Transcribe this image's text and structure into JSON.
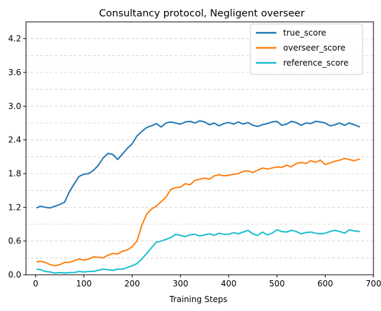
{
  "chart_data": {
    "type": "line",
    "title": "Consultancy protocol, Negligent overseer",
    "xlabel": "Training Steps",
    "ylabel": "",
    "xlim": [
      -20,
      700
    ],
    "ylim": [
      0.0,
      4.5
    ],
    "xticks": [
      0,
      100,
      200,
      300,
      400,
      500,
      600,
      700
    ],
    "yticks": [
      0.0,
      0.6,
      1.2,
      1.8,
      2.4,
      3.0,
      3.6,
      4.2
    ],
    "xtick_labels": [
      "0",
      "100",
      "200",
      "300",
      "400",
      "500",
      "600",
      "700"
    ],
    "ytick_labels": [
      "0.0",
      "0.6",
      "1.2",
      "1.8",
      "2.4",
      "3.0",
      "3.6",
      "4.2"
    ],
    "grid": "horizontal dashed, major and minor",
    "legend_position": "top-right",
    "series": [
      {
        "name": "true_score",
        "color": "#1f77b4",
        "x": [
          2,
          10,
          20,
          30,
          40,
          50,
          60,
          70,
          80,
          90,
          100,
          110,
          120,
          130,
          140,
          150,
          160,
          170,
          180,
          190,
          200,
          210,
          220,
          230,
          240,
          250,
          260,
          270,
          280,
          290,
          300,
          310,
          320,
          330,
          340,
          350,
          360,
          370,
          380,
          390,
          400,
          410,
          420,
          430,
          440,
          450,
          460,
          470,
          480,
          490,
          500,
          510,
          520,
          530,
          540,
          550,
          560,
          570,
          580,
          590,
          600,
          610,
          620,
          630,
          640,
          650,
          660,
          672
        ],
        "values": [
          1.19,
          1.22,
          1.2,
          1.19,
          1.22,
          1.25,
          1.29,
          1.48,
          1.62,
          1.75,
          1.79,
          1.8,
          1.86,
          1.95,
          2.08,
          2.16,
          2.14,
          2.05,
          2.15,
          2.25,
          2.33,
          2.47,
          2.55,
          2.62,
          2.65,
          2.69,
          2.63,
          2.7,
          2.72,
          2.7,
          2.68,
          2.72,
          2.73,
          2.7,
          2.74,
          2.72,
          2.67,
          2.7,
          2.65,
          2.69,
          2.71,
          2.68,
          2.72,
          2.68,
          2.71,
          2.66,
          2.64,
          2.67,
          2.69,
          2.72,
          2.73,
          2.66,
          2.68,
          2.73,
          2.71,
          2.66,
          2.7,
          2.69,
          2.73,
          2.72,
          2.7,
          2.65,
          2.67,
          2.7,
          2.66,
          2.7,
          2.67,
          2.63
        ]
      },
      {
        "name": "overseer_score",
        "color": "#ff7f0e",
        "x": [
          2,
          10,
          20,
          30,
          40,
          50,
          60,
          70,
          80,
          90,
          100,
          110,
          120,
          130,
          140,
          150,
          160,
          170,
          180,
          190,
          200,
          210,
          220,
          230,
          240,
          250,
          260,
          270,
          280,
          290,
          300,
          310,
          320,
          330,
          340,
          350,
          360,
          370,
          380,
          390,
          400,
          410,
          420,
          430,
          440,
          450,
          460,
          470,
          480,
          490,
          500,
          510,
          520,
          530,
          540,
          550,
          560,
          570,
          580,
          590,
          600,
          610,
          620,
          630,
          640,
          650,
          660,
          672
        ],
        "values": [
          0.23,
          0.24,
          0.22,
          0.18,
          0.16,
          0.18,
          0.22,
          0.22,
          0.25,
          0.28,
          0.26,
          0.28,
          0.32,
          0.31,
          0.3,
          0.35,
          0.38,
          0.37,
          0.42,
          0.44,
          0.5,
          0.6,
          0.88,
          1.08,
          1.17,
          1.22,
          1.3,
          1.38,
          1.52,
          1.55,
          1.56,
          1.62,
          1.6,
          1.68,
          1.7,
          1.72,
          1.7,
          1.76,
          1.78,
          1.76,
          1.77,
          1.79,
          1.8,
          1.84,
          1.85,
          1.82,
          1.86,
          1.9,
          1.88,
          1.9,
          1.92,
          1.91,
          1.95,
          1.92,
          1.98,
          2.0,
          1.98,
          2.03,
          2.0,
          2.04,
          1.96,
          1.99,
          2.02,
          2.04,
          2.07,
          2.05,
          2.03,
          2.06
        ]
      },
      {
        "name": "reference_score",
        "color": "#17becf",
        "x": [
          2,
          10,
          20,
          30,
          40,
          50,
          60,
          70,
          80,
          90,
          100,
          110,
          120,
          130,
          140,
          150,
          160,
          170,
          180,
          190,
          200,
          210,
          220,
          230,
          240,
          250,
          260,
          270,
          280,
          290,
          300,
          310,
          320,
          330,
          340,
          350,
          360,
          370,
          380,
          390,
          400,
          410,
          420,
          430,
          440,
          450,
          460,
          470,
          480,
          490,
          500,
          510,
          520,
          530,
          540,
          550,
          560,
          570,
          580,
          590,
          600,
          610,
          620,
          630,
          640,
          650,
          660,
          672
        ],
        "values": [
          0.1,
          0.09,
          0.06,
          0.05,
          0.03,
          0.04,
          0.03,
          0.04,
          0.04,
          0.06,
          0.05,
          0.06,
          0.06,
          0.08,
          0.1,
          0.09,
          0.08,
          0.1,
          0.1,
          0.13,
          0.16,
          0.2,
          0.28,
          0.38,
          0.48,
          0.58,
          0.6,
          0.63,
          0.66,
          0.72,
          0.7,
          0.68,
          0.71,
          0.72,
          0.69,
          0.71,
          0.73,
          0.7,
          0.74,
          0.72,
          0.72,
          0.75,
          0.73,
          0.76,
          0.79,
          0.73,
          0.7,
          0.76,
          0.71,
          0.74,
          0.8,
          0.77,
          0.76,
          0.79,
          0.77,
          0.73,
          0.75,
          0.76,
          0.74,
          0.73,
          0.74,
          0.77,
          0.79,
          0.77,
          0.74,
          0.8,
          0.78,
          0.77
        ]
      }
    ]
  }
}
